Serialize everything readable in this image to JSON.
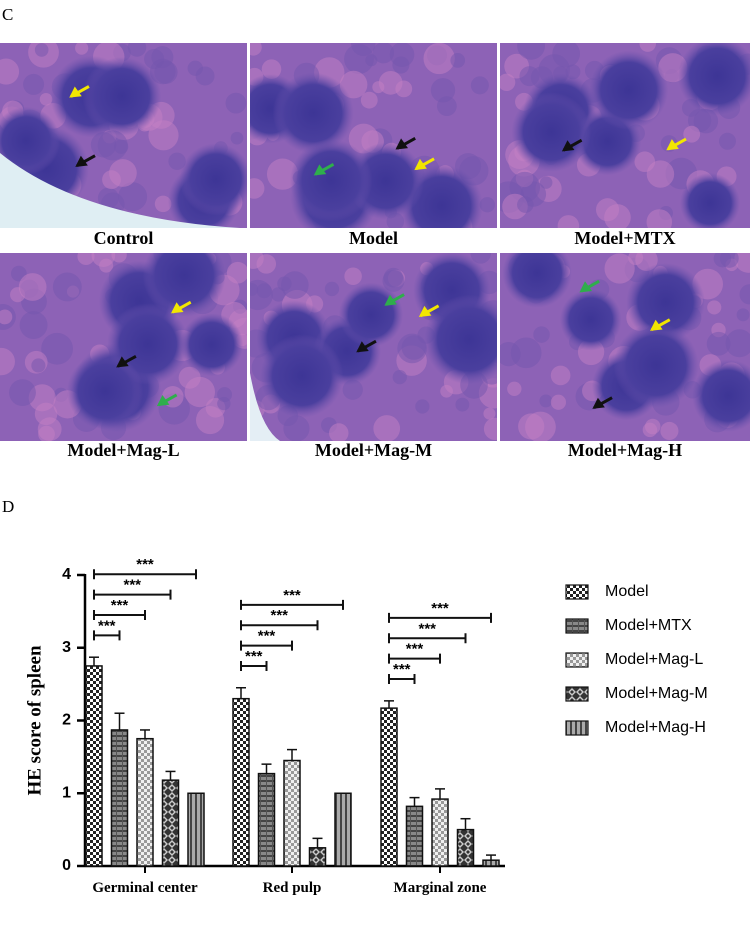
{
  "panels": {
    "top_label": "C",
    "bottom_label": "D",
    "captions": [
      "Control",
      "Model",
      "Model+MTX",
      "Model+Mag-L",
      "Model+Mag-M",
      "Model+Mag-H"
    ]
  },
  "chart_data": {
    "type": "bar",
    "y_label": "HE score of spleen",
    "categories": [
      "Germinal center",
      "Red pulp",
      "Marginal zone"
    ],
    "ylim": [
      0,
      4
    ],
    "yticks": [
      0,
      1,
      2,
      3,
      4
    ],
    "series": [
      {
        "name": "Model",
        "color": "#222222",
        "values": [
          2.75,
          2.3,
          2.17
        ],
        "errors": [
          0.12,
          0.15,
          0.1
        ]
      },
      {
        "name": "Model+MTX",
        "color": "#666666",
        "values": [
          1.87,
          1.27,
          0.82
        ],
        "errors": [
          0.23,
          0.13,
          0.12
        ]
      },
      {
        "name": "Model+Mag-L",
        "color": "#999999",
        "values": [
          1.75,
          1.45,
          0.92
        ],
        "errors": [
          0.12,
          0.15,
          0.14
        ]
      },
      {
        "name": "Model+Mag-M",
        "color": "#333333",
        "values": [
          1.18,
          0.25,
          0.5
        ],
        "errors": [
          0.12,
          0.13,
          0.15
        ]
      },
      {
        "name": "Model+Mag-H",
        "color": "#555555",
        "values": [
          1.0,
          1.0,
          0.08
        ],
        "errors": [
          0,
          0,
          0.07
        ]
      }
    ],
    "annotations": [
      "***",
      "***",
      "***",
      "***",
      "***",
      "***",
      "***",
      "***",
      "***",
      "***",
      "***",
      "***"
    ]
  }
}
